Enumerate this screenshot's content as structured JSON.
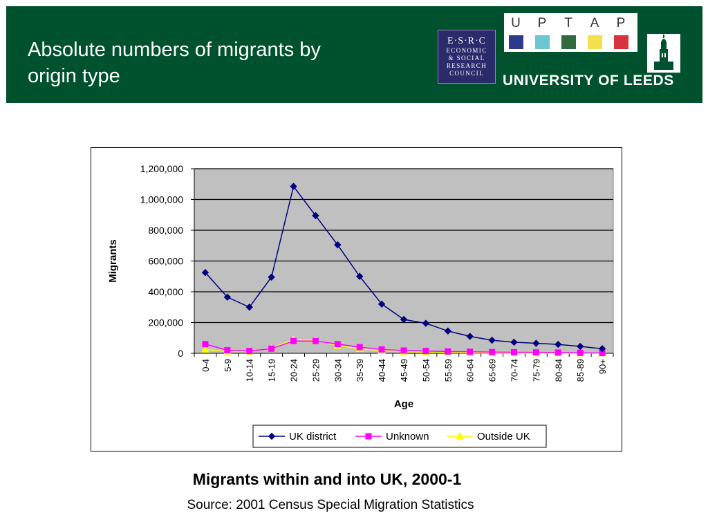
{
  "slide": {
    "title_line1": "Absolute numbers of migrants by",
    "title_line2": "origin type"
  },
  "logos": {
    "esrc": {
      "top": "E·S·R·C",
      "lines": [
        "ECONOMIC",
        "& SOCIAL",
        "RESEARCH",
        "COUNCIL"
      ],
      "color": "#2b2a6b"
    },
    "uptap": {
      "letters": [
        "U",
        "P",
        "T",
        "A",
        "P"
      ],
      "colors": [
        "#2e3a8c",
        "#6cc7d0",
        "#2f6b3f",
        "#f4e04d",
        "#d6333f"
      ]
    },
    "leeds": {
      "name": "UNIVERSITY OF LEEDS",
      "crest": "leeds-tower-crest"
    }
  },
  "colors": {
    "header_bg": "#00512d",
    "plot_bg": "#c0c0c0"
  },
  "caption": "Migrants within and into UK, 2000-1",
  "source": "Source: 2001 Census Special Migration Statistics",
  "chart_data": {
    "type": "line",
    "title": "",
    "xlabel": "Age",
    "ylabel": "Migrants",
    "ylim": [
      0,
      1200000
    ],
    "yticks": [
      0,
      200000,
      400000,
      600000,
      800000,
      1000000,
      1200000
    ],
    "ytick_labels": [
      "0",
      "200,000",
      "400,000",
      "600,000",
      "800,000",
      "1,000,000",
      "1,200,000"
    ],
    "grid": true,
    "legend_position": "bottom",
    "categories": [
      "0-4",
      "5-9",
      "10-14",
      "15-19",
      "20-24",
      "25-29",
      "30-34",
      "35-39",
      "40-44",
      "45-49",
      "50-54",
      "55-59",
      "60-64",
      "65-69",
      "70-74",
      "75-79",
      "80-84",
      "85-89",
      "90+"
    ],
    "series": [
      {
        "name": "UK district",
        "color": "#000080",
        "marker": "diamond",
        "values": [
          525000,
          365000,
          300000,
          495000,
          1085000,
          895000,
          705000,
          500000,
          320000,
          220000,
          195000,
          145000,
          110000,
          85000,
          72000,
          65000,
          58000,
          45000,
          30000
        ]
      },
      {
        "name": "Unknown",
        "color": "#ff00ff",
        "marker": "square",
        "values": [
          60000,
          20000,
          15000,
          30000,
          80000,
          80000,
          60000,
          40000,
          25000,
          18000,
          15000,
          12000,
          10000,
          8000,
          7000,
          6000,
          5000,
          3000,
          2000
        ]
      },
      {
        "name": "Outside UK",
        "color": "#ffff00",
        "marker": "triangle",
        "values": [
          25000,
          12000,
          12000,
          32000,
          90000,
          85000,
          50000,
          30000,
          18000,
          10000,
          7000,
          5000,
          3000,
          2000,
          1500,
          1200,
          1000,
          800,
          600
        ]
      }
    ]
  }
}
